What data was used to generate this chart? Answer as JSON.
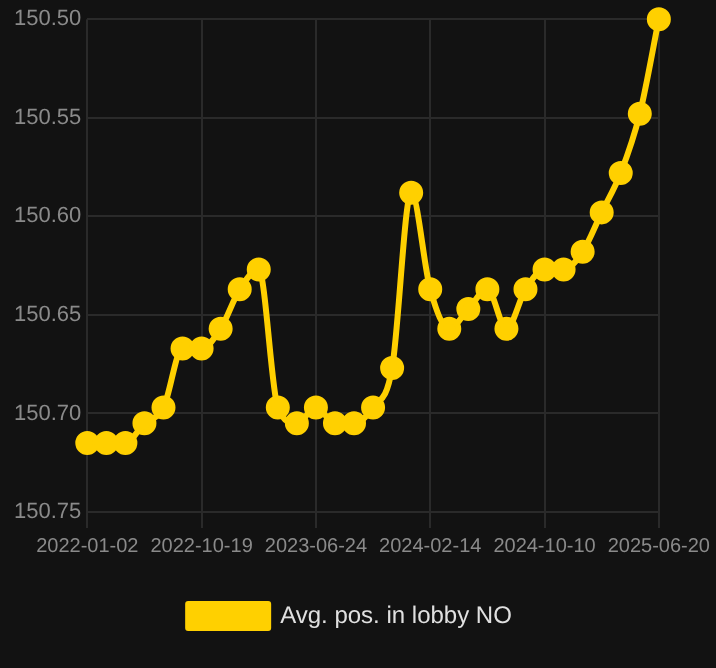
{
  "chart_data": {
    "type": "line",
    "categories": [
      "2022-01-02",
      null,
      null,
      null,
      null,
      null,
      "2022-10-19",
      null,
      null,
      null,
      null,
      null,
      "2023-06-24",
      null,
      null,
      null,
      null,
      null,
      "2024-02-14",
      null,
      null,
      null,
      null,
      null,
      "2024-10-10",
      null,
      null,
      null,
      null,
      null,
      "2025-06-20"
    ],
    "series": [
      {
        "name": "Avg. pos. in lobby NO",
        "color": "#ffd000",
        "values": [
          150.715,
          150.715,
          150.715,
          150.705,
          150.697,
          150.667,
          150.667,
          150.657,
          150.637,
          150.627,
          150.697,
          150.705,
          150.697,
          150.705,
          150.705,
          150.697,
          150.677,
          150.588,
          150.637,
          150.657,
          150.647,
          150.637,
          150.657,
          150.637,
          150.627,
          150.627,
          150.618,
          150.598,
          150.578,
          150.548,
          150.5
        ]
      }
    ],
    "ylim": [
      150.75,
      150.5
    ],
    "yticks": [
      {
        "value": 150.5,
        "label": "150.50"
      },
      150.55,
      {
        "value": 150.6,
        "label": "150.60"
      },
      150.65,
      {
        "value": 150.7,
        "label": "150.70"
      },
      150.75
    ],
    "grid": true,
    "legend": "bottom",
    "marker": "circle"
  }
}
